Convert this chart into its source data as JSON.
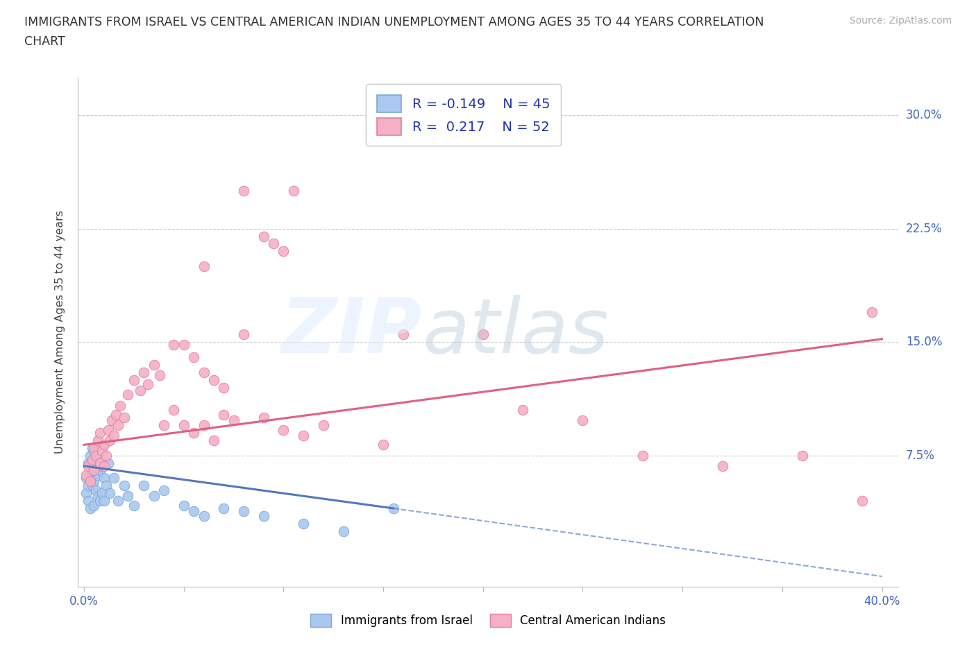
{
  "title_line1": "IMMIGRANTS FROM ISRAEL VS CENTRAL AMERICAN INDIAN UNEMPLOYMENT AMONG AGES 35 TO 44 YEARS CORRELATION",
  "title_line2": "CHART",
  "source_text": "Source: ZipAtlas.com",
  "ylabel": "Unemployment Among Ages 35 to 44 years",
  "xlim_min": -0.003,
  "xlim_max": 0.408,
  "ylim_min": -0.012,
  "ylim_max": 0.325,
  "ytick_values": [
    0.075,
    0.15,
    0.225,
    0.3
  ],
  "ytick_labels": [
    "7.5%",
    "15.0%",
    "22.5%",
    "30.0%"
  ],
  "israel_color": "#aac8f0",
  "israel_edge": "#7aaad0",
  "central_color": "#f5b0c5",
  "central_edge": "#e080a0",
  "israel_line_color": "#5577bb",
  "central_line_color": "#e06080",
  "israel_line_start_x": 0.0,
  "israel_line_start_y": 0.068,
  "israel_line_solid_end_x": 0.155,
  "israel_line_solid_end_y": 0.04,
  "israel_line_dash_end_x": 0.4,
  "israel_line_dash_end_y": -0.005,
  "central_line_start_x": 0.0,
  "central_line_start_y": 0.082,
  "central_line_end_x": 0.4,
  "central_line_end_y": 0.152,
  "israel_x": [
    0.001,
    0.001,
    0.002,
    0.002,
    0.002,
    0.003,
    0.003,
    0.003,
    0.004,
    0.004,
    0.004,
    0.005,
    0.005,
    0.005,
    0.005,
    0.006,
    0.006,
    0.007,
    0.007,
    0.008,
    0.008,
    0.009,
    0.009,
    0.01,
    0.01,
    0.011,
    0.012,
    0.013,
    0.015,
    0.017,
    0.02,
    0.022,
    0.025,
    0.03,
    0.035,
    0.04,
    0.05,
    0.055,
    0.06,
    0.07,
    0.08,
    0.09,
    0.11,
    0.13,
    0.155
  ],
  "israel_y": [
    0.05,
    0.06,
    0.045,
    0.055,
    0.07,
    0.04,
    0.06,
    0.075,
    0.055,
    0.065,
    0.08,
    0.042,
    0.058,
    0.068,
    0.078,
    0.052,
    0.072,
    0.048,
    0.062,
    0.045,
    0.065,
    0.05,
    0.068,
    0.045,
    0.06,
    0.055,
    0.07,
    0.05,
    0.06,
    0.045,
    0.055,
    0.048,
    0.042,
    0.055,
    0.048,
    0.052,
    0.042,
    0.038,
    0.035,
    0.04,
    0.038,
    0.035,
    0.03,
    0.025,
    0.04
  ],
  "central_x": [
    0.001,
    0.002,
    0.003,
    0.004,
    0.005,
    0.005,
    0.006,
    0.007,
    0.008,
    0.008,
    0.009,
    0.01,
    0.01,
    0.011,
    0.012,
    0.013,
    0.014,
    0.015,
    0.016,
    0.017,
    0.018,
    0.02,
    0.022,
    0.025,
    0.028,
    0.03,
    0.032,
    0.035,
    0.038,
    0.04,
    0.045,
    0.05,
    0.055,
    0.06,
    0.065,
    0.07,
    0.075,
    0.08,
    0.09,
    0.1,
    0.11,
    0.12,
    0.15,
    0.16,
    0.2,
    0.22,
    0.25,
    0.28,
    0.32,
    0.36,
    0.39,
    0.395
  ],
  "central_y": [
    0.062,
    0.068,
    0.058,
    0.072,
    0.065,
    0.08,
    0.075,
    0.085,
    0.07,
    0.09,
    0.078,
    0.068,
    0.082,
    0.075,
    0.092,
    0.085,
    0.098,
    0.088,
    0.102,
    0.095,
    0.108,
    0.1,
    0.115,
    0.125,
    0.118,
    0.13,
    0.122,
    0.135,
    0.128,
    0.095,
    0.105,
    0.095,
    0.09,
    0.095,
    0.085,
    0.102,
    0.098,
    0.155,
    0.1,
    0.092,
    0.088,
    0.095,
    0.082,
    0.155,
    0.155,
    0.105,
    0.098,
    0.075,
    0.068,
    0.075,
    0.045,
    0.17
  ],
  "central_high_x": [
    0.06,
    0.08,
    0.09,
    0.095,
    0.1,
    0.105
  ],
  "central_high_y": [
    0.2,
    0.25,
    0.22,
    0.215,
    0.21,
    0.25
  ],
  "central_mid_x": [
    0.045,
    0.05,
    0.055,
    0.06,
    0.065,
    0.07
  ],
  "central_mid_y": [
    0.148,
    0.148,
    0.14,
    0.13,
    0.125,
    0.12
  ]
}
